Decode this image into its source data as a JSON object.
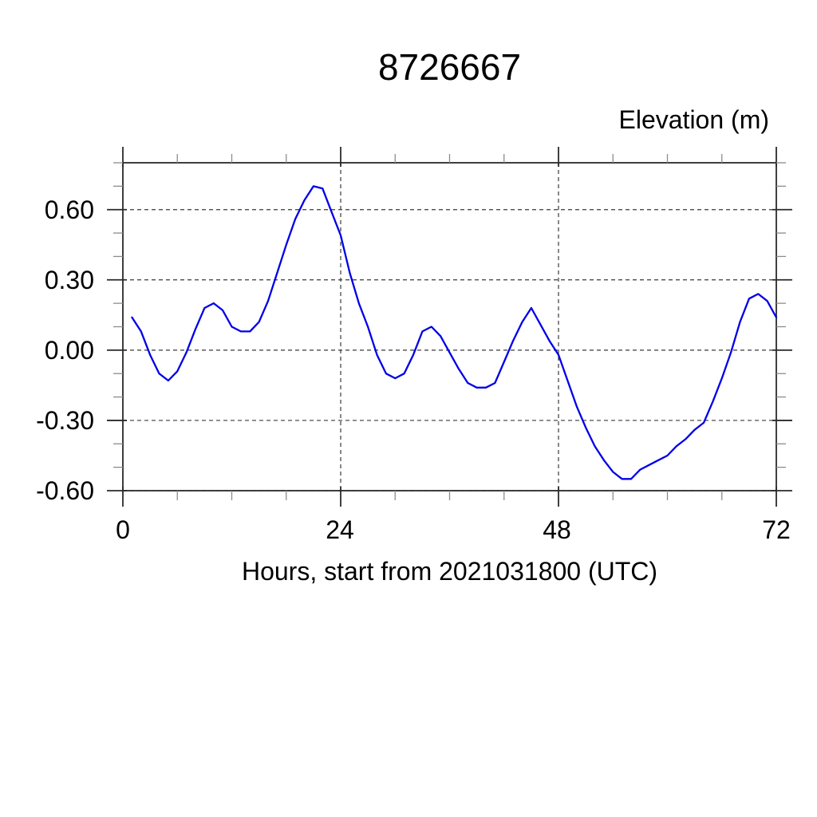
{
  "chart": {
    "y_tick_labels": [
      "0.60",
      "0.30",
      "0.00",
      "-0.30",
      "-0.60"
    ],
    "x_tick_labels": [
      "0",
      "24",
      "48",
      "72"
    ]
  },
  "chart_data": {
    "type": "line",
    "title": "8726667",
    "ylabel": "Elevation (m)",
    "xlabel": "Hours, start from 2021031800 (UTC)",
    "xlim": [
      0,
      72
    ],
    "ylim": [
      -0.6,
      0.8
    ],
    "x_major_ticks": [
      0,
      24,
      48,
      72
    ],
    "x_minor_step": 6,
    "y_major_ticks": [
      0.6,
      0.3,
      0.0,
      -0.3,
      -0.6
    ],
    "y_minor_step": 0.1,
    "grid": "dashed-at-major-ticks",
    "legend": "none",
    "style": {
      "line_color": "#0000e8",
      "frame_color": "#2a2a2a",
      "grid_color": "#3a3a3a",
      "major_tick_color": "#2a2a2a",
      "minor_tick_color": "#8c8c8c",
      "background": "#ffffff",
      "text_color": "#000000"
    },
    "series": [
      {
        "name": "elevation",
        "color": "#0000e8",
        "x": [
          1,
          2,
          3,
          4,
          5,
          6,
          7,
          8,
          9,
          10,
          11,
          12,
          13,
          14,
          15,
          16,
          17,
          18,
          19,
          20,
          21,
          22,
          23,
          24,
          25,
          26,
          27,
          28,
          29,
          30,
          31,
          32,
          33,
          34,
          35,
          36,
          37,
          38,
          39,
          40,
          41,
          42,
          43,
          44,
          45,
          46,
          47,
          48,
          49,
          50,
          51,
          52,
          53,
          54,
          55,
          56,
          57,
          58,
          59,
          60,
          61,
          62,
          63,
          64,
          65,
          66,
          67,
          68,
          69,
          70,
          71,
          72
        ],
        "y": [
          0.14,
          0.08,
          -0.02,
          -0.1,
          -0.13,
          -0.09,
          -0.01,
          0.09,
          0.18,
          0.2,
          0.17,
          0.1,
          0.08,
          0.08,
          0.12,
          0.21,
          0.33,
          0.45,
          0.56,
          0.64,
          0.7,
          0.69,
          0.59,
          0.49,
          0.33,
          0.2,
          0.1,
          -0.02,
          -0.1,
          -0.12,
          -0.1,
          -0.02,
          0.08,
          0.1,
          0.06,
          -0.01,
          -0.08,
          -0.14,
          -0.16,
          -0.16,
          -0.14,
          -0.05,
          0.04,
          0.12,
          0.18,
          0.11,
          0.04,
          -0.02,
          -0.13,
          -0.24,
          -0.33,
          -0.41,
          -0.47,
          -0.52,
          -0.55,
          -0.55,
          -0.51,
          -0.49,
          -0.47,
          -0.45,
          -0.41,
          -0.38,
          -0.34,
          -0.31,
          -0.22,
          -0.12,
          -0.01,
          0.12,
          0.22,
          0.24,
          0.21,
          0.14
        ]
      }
    ]
  }
}
